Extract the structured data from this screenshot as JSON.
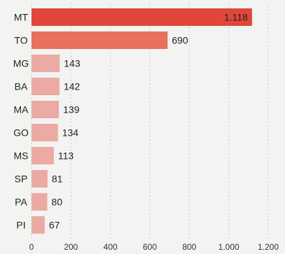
{
  "chart_data": {
    "type": "bar",
    "orientation": "horizontal",
    "categories": [
      "MT",
      "TO",
      "MG",
      "BA",
      "MA",
      "GO",
      "MS",
      "SP",
      "PA",
      "PI"
    ],
    "values": [
      1118,
      690,
      143,
      142,
      139,
      134,
      113,
      81,
      80,
      67
    ],
    "value_labels": [
      "1.118",
      "690",
      "143",
      "142",
      "139",
      "134",
      "113",
      "81",
      "80",
      "67"
    ],
    "xlim": [
      0,
      1200
    ],
    "x_ticks": [
      0,
      200,
      400,
      600,
      800,
      1000,
      1200
    ],
    "x_tick_labels": [
      "0",
      "200",
      "400",
      "600",
      "800",
      "1.000",
      "1.200"
    ],
    "grid": "vertical dashed",
    "title": "",
    "xlabel": "",
    "ylabel": "",
    "colors": {
      "background": "#f3f3f1",
      "bar_top": "#e0473a",
      "bar_second": "#e8705e",
      "bar_other": "#ebaaa3",
      "grid": "#c8c8c8",
      "text": "#222222"
    }
  }
}
